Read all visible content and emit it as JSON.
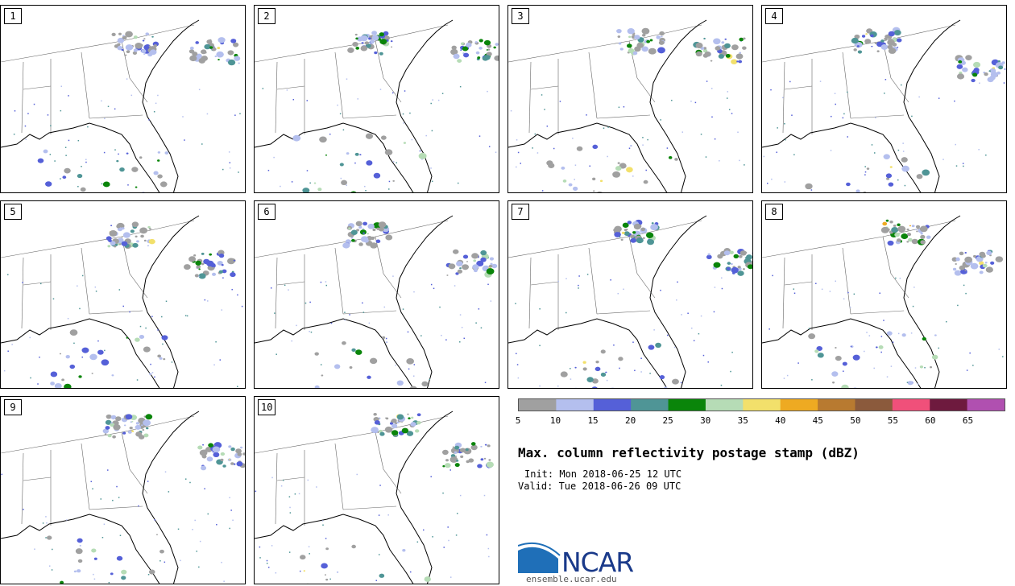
{
  "panels": [
    {
      "label": "1"
    },
    {
      "label": "2"
    },
    {
      "label": "3"
    },
    {
      "label": "4"
    },
    {
      "label": "5"
    },
    {
      "label": "6"
    },
    {
      "label": "7"
    },
    {
      "label": "8"
    },
    {
      "label": "9"
    },
    {
      "label": "10"
    }
  ],
  "colorbar": {
    "colors": [
      "#a0a0a0",
      "#b4bfee",
      "#5560d8",
      "#4f9596",
      "#0a850a",
      "#b6dcb6",
      "#f2e06b",
      "#eeaa22",
      "#b87a30",
      "#8b5a3c",
      "#f0507a",
      "#6e1a3e",
      "#b050b0"
    ],
    "ticks": [
      "5",
      "10",
      "15",
      "20",
      "25",
      "30",
      "35",
      "40",
      "45",
      "50",
      "55",
      "60",
      "65"
    ]
  },
  "title": "Max. column reflectivity postage stamp (dBZ)",
  "init": "Init: Mon 2018-06-25 12 UTC",
  "valid": "Valid: Tue 2018-06-26 09 UTC",
  "logo": {
    "name": "NCAR",
    "url": "ensemble.ucar.edu"
  }
}
